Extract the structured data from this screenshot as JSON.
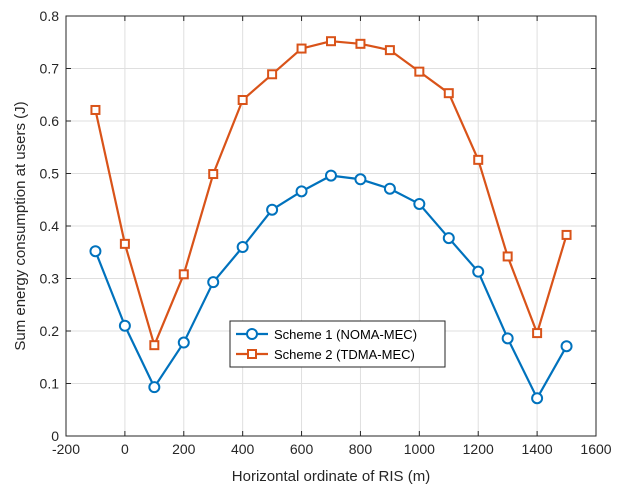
{
  "chart_data": {
    "type": "line",
    "title": "",
    "xlabel": "Horizontal ordinate of RIS (m)",
    "ylabel": "Sum energy consumption at users (J)",
    "xlim": [
      -200,
      1600
    ],
    "ylim": [
      0,
      0.8
    ],
    "xticks": [
      -200,
      0,
      200,
      400,
      600,
      800,
      1000,
      1200,
      1400,
      1600
    ],
    "yticks": [
      0,
      0.1,
      0.2,
      0.3,
      0.4,
      0.5,
      0.6,
      0.7,
      0.8
    ],
    "grid": true,
    "legend_position": "lower-center",
    "x": [
      -100,
      0,
      100,
      200,
      300,
      400,
      500,
      600,
      700,
      800,
      900,
      1000,
      1100,
      1200,
      1300,
      1400,
      1500
    ],
    "series": [
      {
        "name": "Scheme 1 (NOMA-MEC)",
        "color": "#0072BD",
        "marker": "circle",
        "values": [
          0.352,
          0.21,
          0.093,
          0.178,
          0.293,
          0.36,
          0.431,
          0.466,
          0.496,
          0.489,
          0.471,
          0.442,
          0.377,
          0.313,
          0.186,
          0.072,
          0.171
        ]
      },
      {
        "name": "Scheme 2 (TDMA-MEC)",
        "color": "#D95319",
        "marker": "square",
        "values": [
          0.621,
          0.366,
          0.173,
          0.308,
          0.499,
          0.64,
          0.689,
          0.738,
          0.752,
          0.747,
          0.735,
          0.694,
          0.653,
          0.526,
          0.342,
          0.196,
          0.383
        ]
      }
    ]
  }
}
